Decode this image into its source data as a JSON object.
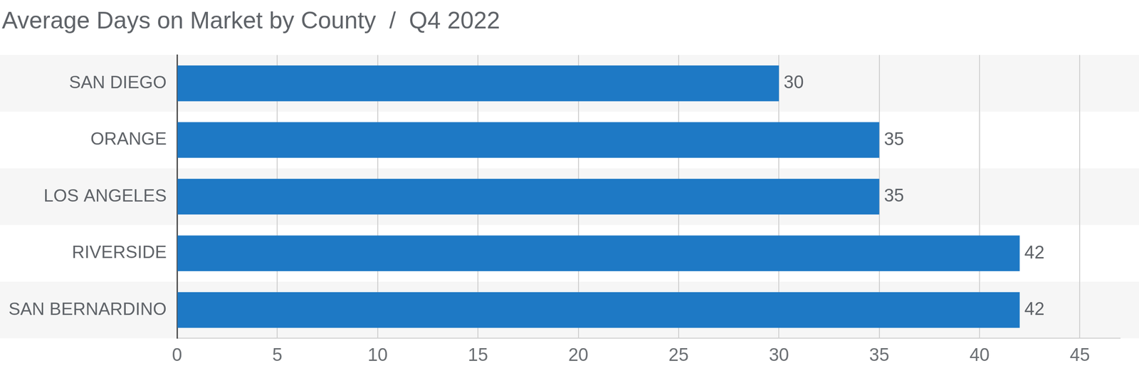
{
  "chart_data": {
    "type": "bar",
    "orientation": "horizontal",
    "title": "Average Days on Market by County  /  Q4 2022",
    "categories": [
      "SAN DIEGO",
      "ORANGE",
      "LOS ANGELES",
      "RIVERSIDE",
      "SAN BERNARDINO"
    ],
    "values": [
      30,
      35,
      35,
      42,
      42
    ],
    "color": "#1e79c5",
    "xlim": [
      0,
      47
    ],
    "xticks": [
      0,
      5,
      10,
      15,
      20,
      25,
      30,
      35,
      40,
      45
    ],
    "grid": true,
    "data_labels": true
  }
}
